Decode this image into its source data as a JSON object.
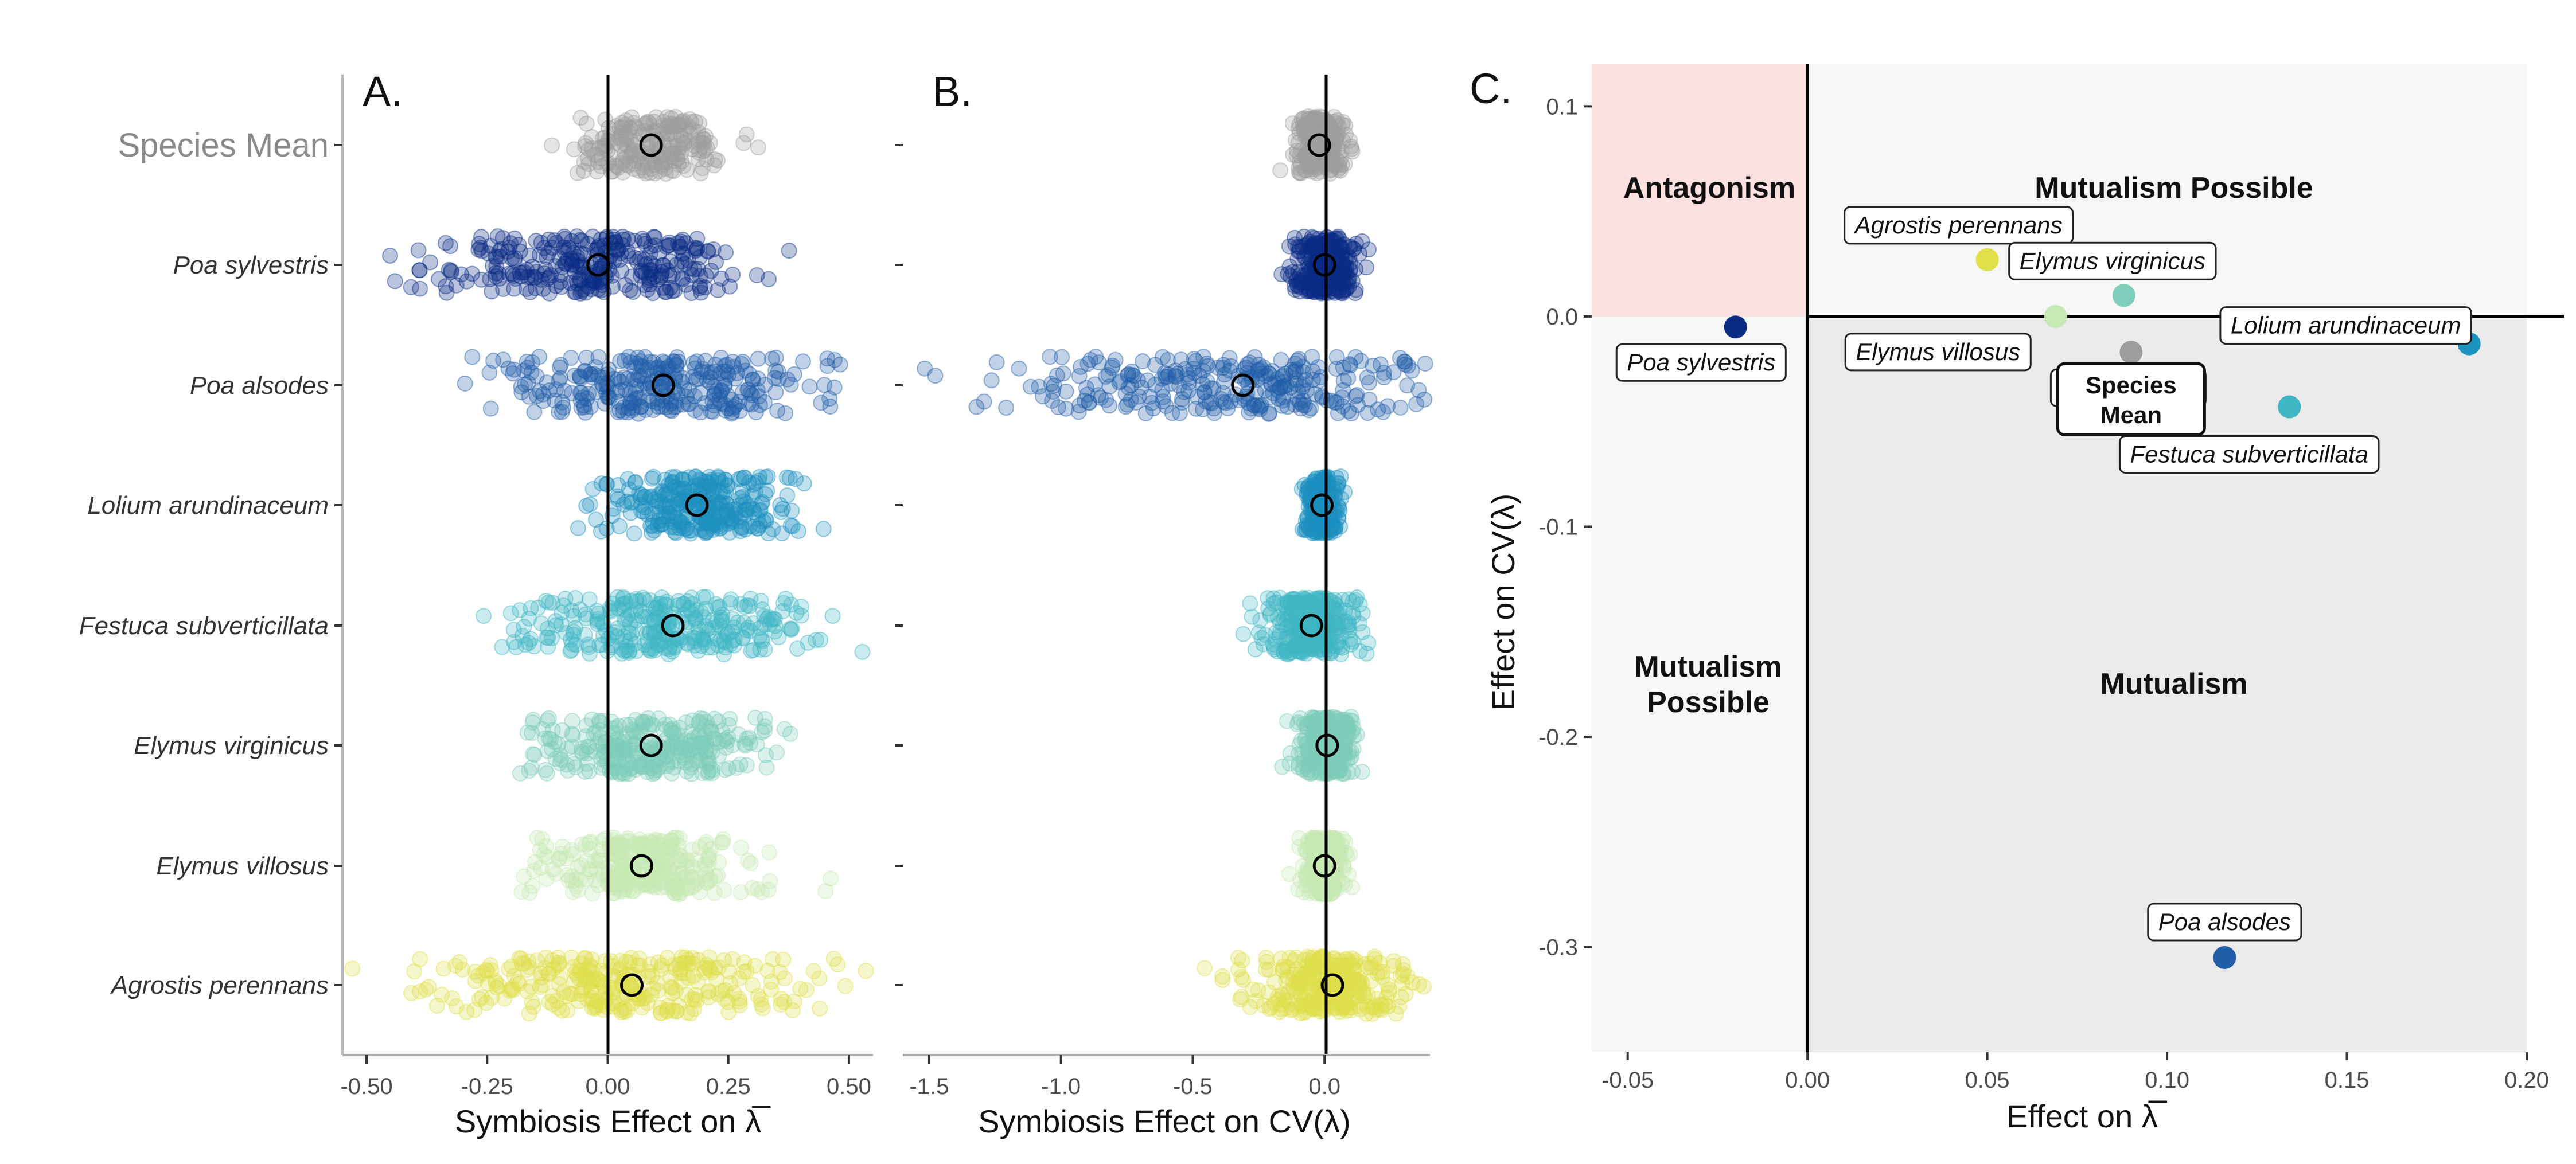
{
  "colors": {
    "species_mean": "#9e9e9e",
    "poa_sylvestris": "#0c2c84",
    "poa_alsodes": "#225ea8",
    "lolium_arundinaceum": "#1d91c0",
    "festuca_subverticillata": "#41b6c4",
    "elymus_virginicus": "#7fcdbb",
    "elymus_villosus": "#c7e9b4",
    "agrostis_perennans": "#dfe04a",
    "antagonism_fill": "#fde0e0",
    "mutualism_possible_fill": "#f5f5f5",
    "mutualism_fill": "#ebebeb"
  },
  "chart_data": [
    {
      "type": "scatter",
      "panel_label": "A.",
      "xlabel": "Symbiosis Effect on λ̅",
      "xlim": [
        -0.55,
        0.55
      ],
      "xticks": [
        "-0.50",
        "-0.25",
        "0.00",
        "0.25",
        "0.50"
      ],
      "xtick_values": [
        -0.5,
        -0.25,
        0,
        0.25,
        0.5
      ],
      "vline_at": 0,
      "categories": [
        "Species Mean",
        "Poa sylvestris",
        "Poa alsodes",
        "Lolium arundinaceum",
        "Festuca subverticillata",
        "Elymus virginicus",
        "Elymus villosus",
        "Agrostis perennans"
      ],
      "series": [
        {
          "name": "Species Mean",
          "mean": 0.09,
          "sd": 0.08
        },
        {
          "name": "Poa sylvestris",
          "mean": -0.02,
          "sd": 0.15
        },
        {
          "name": "Poa alsodes",
          "mean": 0.115,
          "sd": 0.17
        },
        {
          "name": "Lolium arundinaceum",
          "mean": 0.185,
          "sd": 0.09
        },
        {
          "name": "Festuca subverticillata",
          "mean": 0.135,
          "sd": 0.16
        },
        {
          "name": "Elymus virginicus",
          "mean": 0.09,
          "sd": 0.12
        },
        {
          "name": "Elymus villosus",
          "mean": 0.07,
          "sd": 0.1
        },
        {
          "name": "Agrostis perennans",
          "mean": 0.05,
          "sd": 0.2
        }
      ]
    },
    {
      "type": "scatter",
      "panel_label": "B.",
      "xlabel": "Symbiosis Effect on CV(λ)",
      "xlim": [
        -1.6,
        0.4
      ],
      "xticks": [
        "-1.5",
        "-1.0",
        "-0.5",
        "0.0"
      ],
      "xtick_values": [
        -1.5,
        -1.0,
        -0.5,
        0
      ],
      "vline_at": 0,
      "categories": [
        "Species Mean",
        "Poa sylvestris",
        "Poa alsodes",
        "Lolium arundinaceum",
        "Festuca subverticillata",
        "Elymus virginicus",
        "Elymus villosus",
        "Agrostis perennans"
      ],
      "series": [
        {
          "name": "Species Mean",
          "mean": -0.02,
          "sd": 0.05
        },
        {
          "name": "Poa sylvestris",
          "mean": 0.0,
          "sd": 0.06
        },
        {
          "name": "Poa alsodes",
          "mean": -0.31,
          "sd": 0.45
        },
        {
          "name": "Lolium arundinaceum",
          "mean": -0.01,
          "sd": 0.03
        },
        {
          "name": "Festuca subverticillata",
          "mean": -0.05,
          "sd": 0.09
        },
        {
          "name": "Elymus virginicus",
          "mean": 0.01,
          "sd": 0.05
        },
        {
          "name": "Elymus villosus",
          "mean": 0.0,
          "sd": 0.04
        },
        {
          "name": "Agrostis perennans",
          "mean": 0.03,
          "sd": 0.15
        }
      ]
    },
    {
      "type": "scatter",
      "panel_label": "C.",
      "xlabel": "Effect on λ̅",
      "ylabel": "Effect on CV(λ)",
      "xlim": [
        -0.06,
        0.2
      ],
      "ylim": [
        -0.35,
        0.12
      ],
      "xticks": [
        "-0.05",
        "0.00",
        "0.05",
        "0.10",
        "0.15",
        "0.20"
      ],
      "xtick_values": [
        -0.05,
        0,
        0.05,
        0.1,
        0.15,
        0.2
      ],
      "yticks": [
        "0.1",
        "0.0",
        "-0.1",
        "-0.2",
        "-0.3"
      ],
      "ytick_values": [
        0.1,
        0,
        -0.1,
        -0.2,
        -0.3
      ],
      "regions": [
        "Antagonism",
        "Mutualism Possible",
        "Mutualism Possible",
        "Mutualism"
      ],
      "points": [
        {
          "name": "Agrostis perennans",
          "x": 0.05,
          "y": 0.027
        },
        {
          "name": "Elymus virginicus",
          "x": 0.088,
          "y": 0.01
        },
        {
          "name": "Elymus villosus",
          "x": 0.069,
          "y": 0.0
        },
        {
          "name": "Lolium arundinaceum",
          "x": 0.184,
          "y": -0.013
        },
        {
          "name": "Species Mean",
          "x": 0.09,
          "y": -0.017
        },
        {
          "name": "Festuca subverticillata",
          "x": 0.134,
          "y": -0.043
        },
        {
          "name": "Poa sylvestris",
          "x": -0.02,
          "y": -0.005
        },
        {
          "name": "Poa alsodes",
          "x": 0.116,
          "y": -0.305
        }
      ],
      "species_mean_label_lines": [
        "Species",
        "Mean"
      ],
      "overlapped_label_fragment": "ean"
    }
  ]
}
